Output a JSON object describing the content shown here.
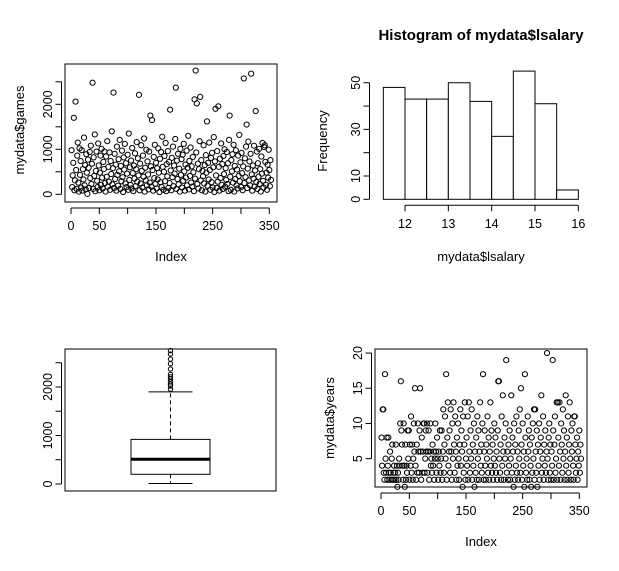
{
  "figure": {
    "description": "R 2x2 plot panel",
    "colors": {
      "background": "#ffffff",
      "foreground": "#000000"
    }
  },
  "chart_data": [
    {
      "panel": "top-left",
      "type": "scatter",
      "title": "",
      "xlabel": "Index",
      "ylabel": "mydata$games",
      "marker": "open-circle",
      "xlim": [
        1,
        353
      ],
      "ylim": [
        0,
        2750
      ],
      "xticks": [
        0,
        50,
        100,
        150,
        200,
        250,
        300,
        350
      ],
      "xtick_labels": [
        "0",
        "50",
        "",
        "150",
        "",
        "250",
        "",
        "350"
      ],
      "yticks": [
        0,
        500,
        1000,
        1500,
        2000,
        2500
      ],
      "ytick_labels": [
        "0",
        "",
        "1000",
        "",
        "2000",
        ""
      ],
      "x_is_index_from": 1,
      "y": [
        980,
        160,
        420,
        700,
        1700,
        90,
        310,
        2060,
        540,
        120,
        860,
        1150,
        260,
        60,
        1020,
        430,
        740,
        150,
        980,
        80,
        560,
        330,
        1260,
        200,
        650,
        110,
        890,
        480,
        10,
        770,
        590,
        140,
        940,
        360,
        1080,
        230,
        680,
        2480,
        120,
        820,
        410,
        1330,
        70,
        520,
        950,
        300,
        160,
        1130,
        640,
        90,
        480,
        860,
        210,
        1010,
        370,
        130,
        720,
        560,
        950,
        250,
        60,
        840,
        390,
        1180,
        170,
        610,
        280,
        930,
        100,
        740,
        450,
        1400,
        220,
        580,
        2260,
        140,
        900,
        340,
        660,
        80,
        1060,
        430,
        190,
        780,
        510,
        1210,
        120,
        630,
        290,
        970,
        380,
        50,
        820,
        550,
        1120,
        240,
        690,
        160,
        460,
        880,
        100,
        1350,
        320,
        600,
        210,
        750,
        130,
        1030,
        470,
        70,
        640,
        350,
        910,
        180,
        560,
        1160,
        280,
        800,
        420,
        2210,
        90,
        680,
        240,
        1090,
        520,
        150,
        860,
        390,
        1240,
        60,
        590,
        310,
        990,
        200,
        730,
        440,
        110,
        950,
        260,
        1750,
        620,
        170,
        1650,
        540,
        80,
        830,
        360,
        1100,
        230,
        700,
        130,
        580,
        330,
        1020,
        480,
        50,
        790,
        270,
        940,
        160,
        1280,
        610,
        100,
        500,
        850,
        290,
        1140,
        70,
        670,
        400,
        960,
        140,
        720,
        250,
        1880,
        530,
        90,
        810,
        380,
        1060,
        180,
        640,
        460,
        1230,
        2370,
        120,
        750,
        340,
        900,
        220,
        570,
        60,
        1010,
        430,
        780,
        150,
        880,
        300,
        1120,
        510,
        80,
        660,
        370,
        970,
        200,
        590,
        1300,
        110,
        740,
        410,
        1040,
        260,
        620,
        170,
        830,
        490,
        70,
        2110,
        350,
        2750,
        930,
        2020,
        230,
        680,
        130,
        560,
        1180,
        2165,
        310,
        760,
        90,
        520,
        400,
        1090,
        240,
        650,
        60,
        870,
        480,
        1620,
        190,
        700,
        330,
        1150,
        540,
        100,
        810,
        270,
        920,
        150,
        600,
        1270,
        50,
        730,
        1900,
        420,
        140,
        960,
        280,
        1955,
        610,
        80,
        790,
        360,
        1130,
        210,
        670,
        120,
        850,
        450,
        1000,
        170,
        580,
        320,
        940,
        230,
        690,
        70,
        1210,
        1750,
        390,
        100,
        760,
        510,
        890,
        260,
        1100,
        60,
        630,
        340,
        980,
        200,
        550,
        130,
        860,
        410,
        1320,
        290,
        710,
        160,
        920,
        470,
        90,
        620,
        2575,
        250,
        800,
        380,
        1060,
        1550,
        140,
        570,
        1170,
        310,
        730,
        200,
        900,
        2680,
        440,
        80,
        640,
        350,
        1080,
        170,
        530,
        1850,
        270,
        950,
        120,
        690,
        390,
        1010,
        230,
        560,
        60,
        840,
        460,
        1140,
        300,
        150,
        1050,
        1090,
        720,
        210,
        480,
        100,
        660,
        370,
        990,
        540,
        180,
        760,
        320
      ]
    },
    {
      "panel": "top-right",
      "type": "histogram",
      "title": "Histogram of mydata$lsalary",
      "xlabel": "mydata$lsalary",
      "ylabel": "Frequency",
      "bar_fill": "#ffffff",
      "breaks": [
        11.5,
        12,
        12.5,
        13,
        13.5,
        14,
        14.5,
        15,
        15.5,
        16
      ],
      "counts": [
        48,
        43,
        43,
        50,
        42,
        27,
        55,
        41,
        4
      ],
      "xticks": [
        12,
        13,
        14,
        15,
        16
      ],
      "xtick_labels": [
        "12",
        "13",
        "14",
        "15",
        "16"
      ],
      "yticks": [
        0,
        10,
        20,
        30,
        40,
        50
      ],
      "ytick_labels": [
        "0",
        "10",
        "",
        "30",
        "",
        "50"
      ],
      "ylim": [
        0,
        55
      ]
    },
    {
      "panel": "bottom-left",
      "type": "boxplot",
      "title": "",
      "xlabel": "",
      "ylabel": "",
      "variable": "mydata$games",
      "ylim": [
        0,
        2780
      ],
      "yticks": [
        0,
        500,
        1000,
        1500,
        2000,
        2500
      ],
      "ytick_labels": [
        "0",
        "",
        "1000",
        "",
        "2000",
        ""
      ],
      "stats": {
        "lower_whisker": 10,
        "q1": 200,
        "median": 510,
        "q3": 920,
        "upper_whisker": 1900
      },
      "outliers": [
        1955,
        2020,
        2060,
        2110,
        2165,
        2210,
        2260,
        2370,
        2480,
        2575,
        2680,
        2750
      ]
    },
    {
      "panel": "bottom-right",
      "type": "scatter",
      "title": "",
      "xlabel": "Index",
      "ylabel": "mydata$years",
      "marker": "open-circle",
      "xlim": [
        1,
        353
      ],
      "ylim": [
        1,
        20
      ],
      "xticks": [
        0,
        50,
        100,
        150,
        200,
        250,
        300,
        350
      ],
      "xtick_labels": [
        "0",
        "50",
        "",
        "150",
        "",
        "250",
        "",
        "350"
      ],
      "yticks": [
        5,
        10,
        15,
        20
      ],
      "ytick_labels": [
        "5",
        "10",
        "15",
        "20"
      ],
      "x_is_index_from": 1,
      "y": [
        8,
        4,
        12,
        12,
        3,
        2,
        17,
        5,
        3,
        8,
        2,
        4,
        8,
        3,
        2,
        6,
        3,
        2,
        5,
        7,
        2,
        3,
        4,
        2,
        3,
        7,
        2,
        4,
        1,
        3,
        2,
        5,
        4,
        10,
        16,
        9,
        7,
        4,
        2,
        10,
        4,
        1,
        7,
        2,
        4,
        3,
        9,
        5,
        9,
        2,
        7,
        4,
        11,
        3,
        7,
        2,
        5,
        10,
        6,
        15,
        4,
        2,
        7,
        3,
        10,
        6,
        3,
        9,
        15,
        6,
        2,
        8,
        3,
        6,
        10,
        10,
        3,
        5,
        9,
        6,
        10,
        3,
        6,
        9,
        2,
        6,
        10,
        4,
        5,
        3,
        7,
        4,
        6,
        2,
        5,
        10,
        6,
        3,
        8,
        5,
        2,
        6,
        4,
        9,
        3,
        5,
        9,
        2,
        6,
        12,
        3,
        7,
        11,
        5,
        17,
        2,
        8,
        13,
        4,
        6,
        9,
        3,
        12,
        6,
        2,
        10,
        5,
        13,
        7,
        3,
        11,
        6,
        2,
        8,
        4,
        10,
        5,
        2,
        7,
        12,
        4,
        9,
        6,
        1,
        11,
        3,
        7,
        13,
        2,
        5,
        8,
        4,
        11,
        2,
        13,
        6,
        3,
        9,
        5,
        12,
        2,
        7,
        4,
        10,
        1,
        6,
        3,
        8,
        2,
        11,
        5,
        9,
        2,
        6,
        13,
        4,
        7,
        3,
        10,
        17,
        2,
        6,
        9,
        4,
        2,
        7,
        5,
        11,
        3,
        8,
        2,
        6,
        13,
        4,
        9,
        3,
        7,
        2,
        5,
        10,
        4,
        8,
        3,
        6,
        2,
        9,
        16,
        16,
        5,
        3,
        7,
        2,
        11,
        4,
        14,
        6,
        2,
        8,
        5,
        10,
        19,
        3,
        6,
        2,
        7,
        4,
        9,
        2,
        5,
        14,
        3,
        8,
        6,
        1,
        10,
        2,
        7,
        4,
        11,
        3,
        6,
        2,
        9,
        5,
        12,
        3,
        15,
        7,
        2,
        10,
        4,
        6,
        1,
        17,
        8,
        3,
        5,
        2,
        11,
        6,
        9,
        2,
        7,
        4,
        1,
        8,
        3,
        10,
        5,
        12,
        2,
        12,
        6,
        3,
        9,
        1,
        7,
        4,
        10,
        2,
        6,
        8,
        14,
        3,
        5,
        11,
        2,
        7,
        4,
        9,
        3,
        6,
        20,
        5,
        2,
        8,
        10,
        3,
        7,
        2,
        6,
        4,
        19,
        9,
        2,
        7,
        11,
        3,
        5,
        13,
        2,
        13,
        8,
        4,
        13,
        6,
        2,
        10,
        7,
        3,
        12,
        5,
        9,
        2,
        6,
        14,
        4,
        8,
        2,
        11,
        3,
        7,
        13,
        5,
        2,
        9,
        6,
        10,
        4,
        2,
        11,
        11,
        7,
        3,
        5,
        8,
        2,
        6,
        4,
        9,
        3,
        7,
        5
      ]
    }
  ]
}
